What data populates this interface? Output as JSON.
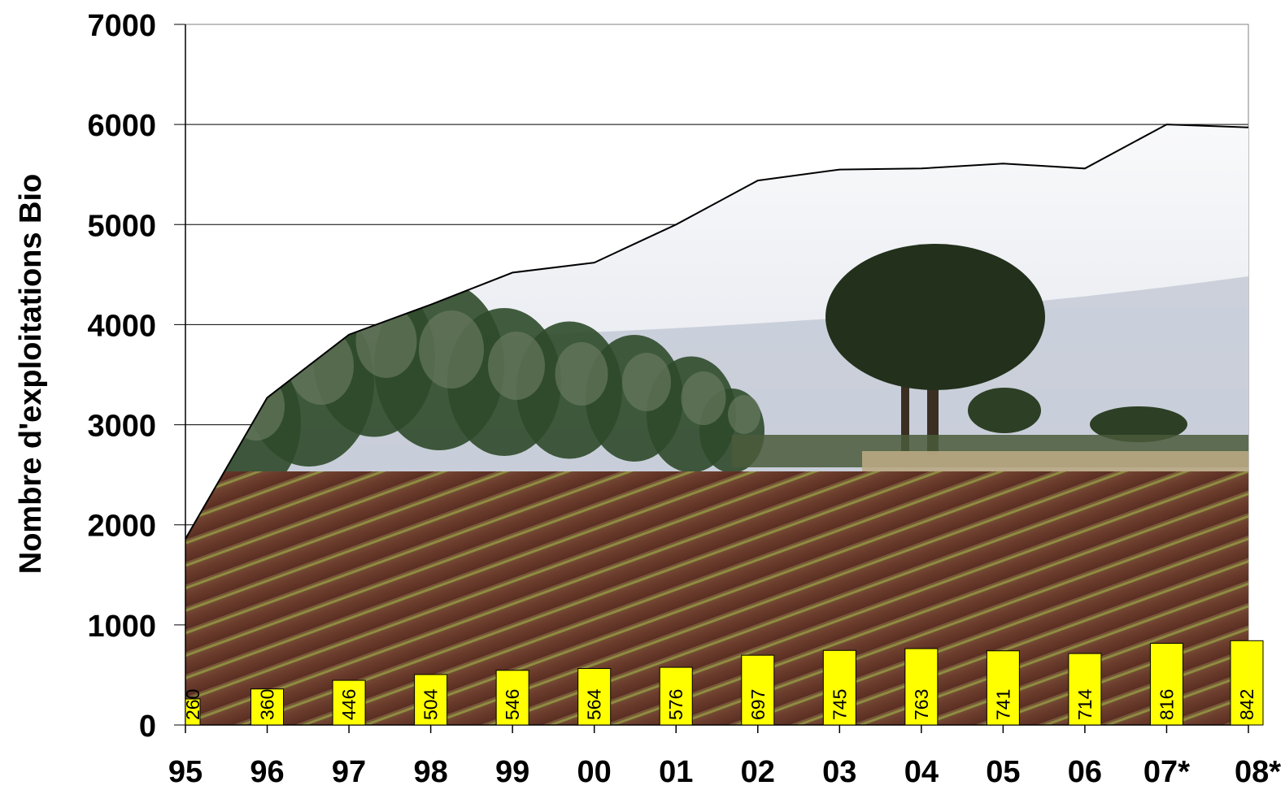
{
  "chart_data": {
    "type": "bar",
    "categories": [
      "95",
      "96",
      "97",
      "98",
      "99",
      "00",
      "01",
      "02",
      "03",
      "04",
      "05",
      "06",
      "07*",
      "08*"
    ],
    "bars": {
      "values": [
        260,
        360,
        446,
        504,
        546,
        564,
        576,
        697,
        745,
        763,
        741,
        714,
        816,
        842
      ],
      "color": "#ffff00"
    },
    "area": {
      "values": [
        1860,
        3270,
        3900,
        4200,
        4520,
        4620,
        5000,
        5440,
        5550,
        5560,
        5610,
        5560,
        6000,
        5970
      ],
      "fill": "landscape photograph (field, trees, sky)"
    },
    "ylabel": "Nombre d'exploitations Bio",
    "xlabel": "",
    "title": "",
    "ylim": [
      0,
      7000
    ],
    "yticks": [
      0,
      1000,
      2000,
      3000,
      4000,
      5000,
      6000,
      7000
    ],
    "grid": true,
    "legend": "none",
    "colors": {
      "grid": "#000000",
      "bar_border": "#000000",
      "bar_fill": "#ffff00"
    }
  }
}
